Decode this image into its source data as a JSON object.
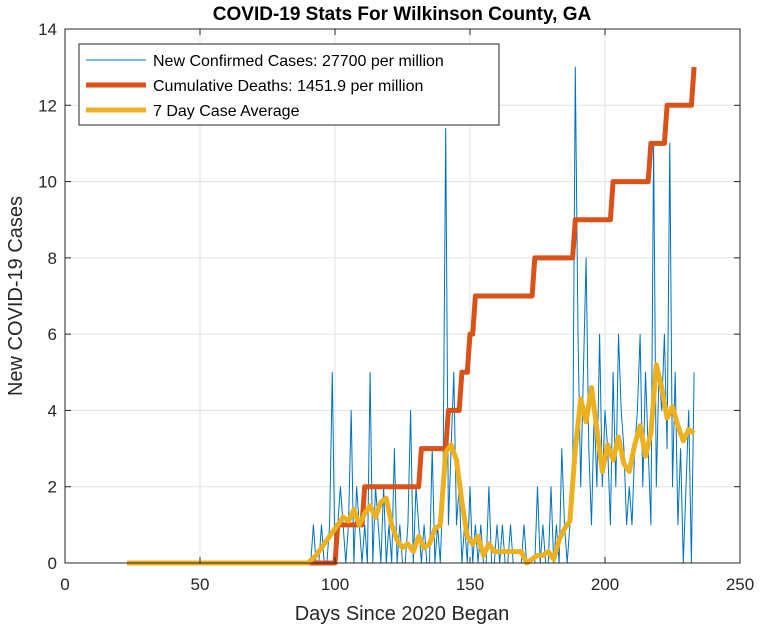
{
  "chart_data": {
    "type": "line",
    "title": "COVID-19 Stats For Wilkinson County, GA",
    "xlabel": "Days Since 2020 Began",
    "ylabel": "New COVID-19 Cases",
    "xlim": [
      0,
      250
    ],
    "ylim": [
      0,
      14
    ],
    "xticks": [
      0,
      50,
      100,
      150,
      200,
      250
    ],
    "yticks": [
      0,
      2,
      4,
      6,
      8,
      10,
      12,
      14
    ],
    "xtick_labels": [
      "0",
      "50",
      "100",
      "150",
      "200",
      "250"
    ],
    "ytick_labels": [
      "0",
      "2",
      "4",
      "6",
      "8",
      "10",
      "12",
      "14"
    ],
    "grid": true,
    "legend_position": "top-left",
    "series": [
      {
        "name": "New Confirmed Cases: 27700 per million",
        "color": "#0072BD",
        "style": "thin",
        "x": [
          23,
          91,
          92,
          93,
          94,
          95,
          96,
          97,
          98,
          99,
          100,
          101,
          102,
          103,
          104,
          105,
          106,
          107,
          108,
          109,
          110,
          111,
          112,
          113,
          114,
          115,
          116,
          117,
          118,
          119,
          120,
          121,
          122,
          123,
          124,
          125,
          126,
          127,
          128,
          129,
          130,
          131,
          132,
          133,
          134,
          135,
          136,
          137,
          138,
          139,
          140,
          141,
          142,
          143,
          144,
          145,
          146,
          147,
          148,
          149,
          150,
          151,
          152,
          153,
          154,
          155,
          156,
          157,
          158,
          159,
          160,
          161,
          162,
          163,
          164,
          165,
          166,
          167,
          168,
          169,
          170,
          171,
          172,
          173,
          174,
          175,
          176,
          177,
          178,
          179,
          180,
          181,
          182,
          183,
          184,
          185,
          186,
          187,
          188,
          189,
          190,
          191,
          192,
          193,
          194,
          195,
          196,
          197,
          198,
          199,
          200,
          201,
          202,
          203,
          204,
          205,
          206,
          207,
          208,
          209,
          210,
          211,
          212,
          213,
          214,
          215,
          216,
          217,
          218,
          219,
          220,
          221,
          222,
          223,
          224,
          225,
          226,
          227,
          228,
          229,
          230,
          231,
          232,
          233
        ],
        "y": [
          0,
          0,
          1,
          0,
          0,
          1,
          0,
          0,
          1,
          5,
          0,
          1,
          2,
          1,
          0,
          1,
          4,
          0,
          2,
          1,
          0,
          1,
          0,
          5,
          0,
          2,
          1,
          0,
          2,
          0,
          1,
          0,
          3,
          0,
          1,
          0,
          0,
          1,
          4,
          0,
          2,
          1,
          0,
          1,
          0,
          0,
          3,
          0,
          1,
          0,
          2,
          11.4,
          1,
          3,
          5,
          1,
          2,
          0,
          1,
          0,
          2,
          0,
          1,
          0,
          1,
          0,
          0,
          2,
          0,
          0,
          1,
          0,
          1,
          0,
          0,
          1,
          0,
          0,
          0,
          0,
          1,
          0,
          0,
          0,
          0,
          2,
          0,
          1,
          0,
          0,
          2,
          0,
          1,
          0,
          3,
          1,
          0,
          1,
          2,
          13,
          6,
          2,
          5,
          8,
          3,
          1,
          4,
          2,
          6,
          2,
          4,
          3,
          1,
          5,
          2,
          6,
          4,
          3,
          1,
          2,
          1,
          3,
          4,
          6,
          2,
          5,
          3,
          1,
          11,
          2,
          5,
          4,
          6,
          3,
          11,
          2,
          5,
          1,
          3,
          0,
          2,
          4,
          0,
          5
        ]
      },
      {
        "name": "Cumulative Deaths: 1451.9 per million",
        "color": "#D95319",
        "style": "thick",
        "x": [
          23,
          100,
          101,
          101,
          110,
          111,
          111,
          131,
          132,
          132,
          141,
          142,
          142,
          146,
          147,
          147,
          149,
          150,
          150,
          151,
          152,
          152,
          153,
          154,
          154,
          173,
          174,
          174,
          188,
          189,
          189,
          202,
          203,
          203,
          216,
          217,
          217,
          222,
          223,
          223,
          228,
          229,
          229,
          232,
          233
        ],
        "y": [
          0,
          0,
          1,
          1,
          1,
          2,
          2,
          2,
          3,
          3,
          3,
          4,
          4,
          4,
          5,
          5,
          5,
          6,
          6,
          6,
          7,
          7,
          7,
          7,
          7,
          7,
          8,
          8,
          8,
          9,
          9,
          9,
          10,
          10,
          10,
          11,
          11,
          11,
          12,
          12,
          12,
          12,
          12,
          12,
          13
        ]
      },
      {
        "name": "7 Day Case Average",
        "color": "#EDB120",
        "style": "thick",
        "x": [
          23,
          90,
          93,
          96,
          99,
          101,
          103,
          105,
          107,
          109,
          111,
          113,
          115,
          117,
          119,
          121,
          123,
          125,
          127,
          129,
          131,
          133,
          135,
          137,
          139,
          141,
          143,
          145,
          147,
          149,
          151,
          153,
          155,
          157,
          159,
          161,
          163,
          165,
          167,
          169,
          171,
          173,
          175,
          177,
          179,
          181,
          183,
          185,
          187,
          189,
          191,
          193,
          195,
          197,
          199,
          201,
          203,
          205,
          207,
          209,
          211,
          213,
          215,
          217,
          219,
          221,
          223,
          225,
          227,
          229,
          231,
          233
        ],
        "y": [
          0,
          0,
          0.2,
          0.5,
          0.8,
          1.0,
          1.2,
          1.1,
          1.4,
          1.0,
          1.3,
          1.5,
          1.2,
          1.6,
          1.7,
          1.0,
          0.6,
          0.4,
          0.5,
          0.3,
          0.7,
          0.4,
          0.5,
          0.9,
          1.0,
          2.9,
          3.1,
          2.7,
          1.6,
          0.7,
          0.5,
          0.7,
          0.2,
          0.5,
          0.3,
          0.3,
          0.3,
          0.3,
          0.3,
          0.3,
          0,
          0.1,
          0.2,
          0.2,
          0.3,
          0.1,
          0.6,
          0.9,
          1.1,
          3.0,
          4.3,
          3.7,
          4.6,
          3.5,
          2.4,
          3.1,
          2.7,
          3.3,
          2.6,
          2.4,
          3.1,
          3.6,
          2.8,
          3.4,
          5.2,
          4.6,
          3.8,
          4.1,
          3.6,
          3.2,
          3.5,
          3.4
        ]
      }
    ]
  }
}
